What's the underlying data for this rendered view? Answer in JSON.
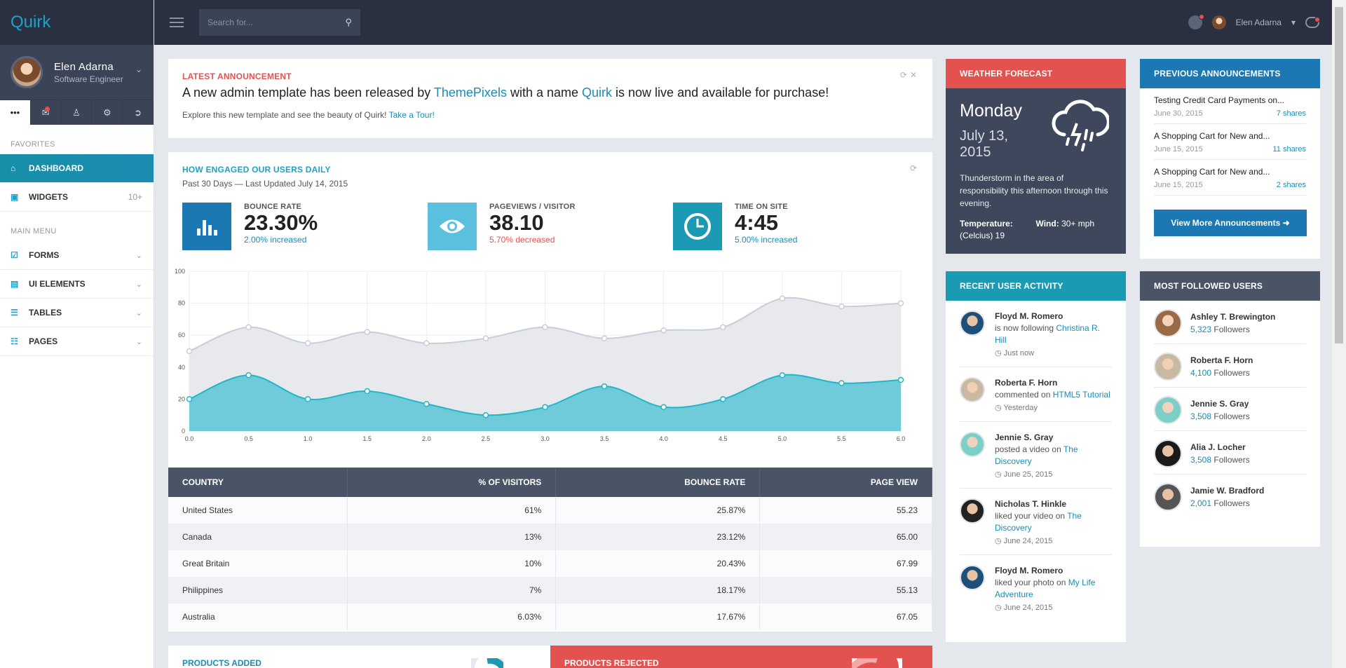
{
  "app": {
    "logo": "Quirk"
  },
  "header": {
    "search": {
      "placeholder": "Search for..."
    },
    "user_name": "Elen Adarna"
  },
  "sidebar": {
    "profile": {
      "name": "Elen Adarna",
      "role": "Software Engineer"
    },
    "quick_icons": [
      "more-icon",
      "mail-icon",
      "user-icon",
      "gear-icon",
      "logout-icon"
    ],
    "favorites_label": "Favorites",
    "favorites": [
      {
        "label": "Dashboard",
        "icon": "home-icon",
        "active": true
      },
      {
        "label": "Widgets",
        "icon": "cube-icon",
        "badge": "10+"
      }
    ],
    "main_menu_label": "Main Menu",
    "main_menu": [
      {
        "label": "Forms",
        "icon": "check-square-icon"
      },
      {
        "label": "UI Elements",
        "icon": "briefcase-icon"
      },
      {
        "label": "Tables",
        "icon": "list-icon"
      },
      {
        "label": "Pages",
        "icon": "file-icon"
      }
    ]
  },
  "announcement": {
    "title": "Latest Announcement",
    "headline_1": "A new admin template has been released by ",
    "headline_link_1": "ThemePixels",
    "headline_2": " with a name ",
    "headline_link_2": "Quirk",
    "headline_3": " is now live and available for purchase!",
    "subtext": "Explore this new template and see the beauty of Quirk! ",
    "subtext_link": "Take a Tour!"
  },
  "engagement": {
    "title": "How Engaged Our Users Daily",
    "subtitle": "Past 30 Days — Last Updated July 14, 2015",
    "stats": [
      {
        "label": "Bounce Rate",
        "value": "23.30%",
        "change": "2.00% increased",
        "trend": "up",
        "icon": "bar-chart-icon",
        "color": "#1b78b3"
      },
      {
        "label": "Pageviews / Visitor",
        "value": "38.10",
        "change": "5.70% decreased",
        "trend": "down",
        "icon": "eye-icon",
        "color": "#5bc0de"
      },
      {
        "label": "Time On Site",
        "value": "4:45",
        "change": "5.00% increased",
        "trend": "up",
        "icon": "clock-icon",
        "color": "#1b9ab3"
      }
    ]
  },
  "chart_data": {
    "type": "area",
    "x": [
      0,
      0.5,
      1,
      1.5,
      2,
      2.5,
      3,
      3.5,
      4,
      4.5,
      5,
      5.5,
      6
    ],
    "series": [
      {
        "values": [
          50,
          65,
          55,
          62,
          55,
          58,
          65,
          58,
          63,
          65,
          83,
          78,
          80
        ],
        "color": "#c9cdd4"
      },
      {
        "values": [
          20,
          35,
          20,
          25,
          17,
          10,
          15,
          28,
          15,
          20,
          35,
          30,
          32
        ],
        "color": "#1fb6c9"
      }
    ],
    "xlim": [
      0,
      6
    ],
    "ylim": [
      0,
      100
    ],
    "x_ticks": [
      "0.0",
      "0.5",
      "1.0",
      "1.5",
      "2.0",
      "2.5",
      "3.0",
      "3.5",
      "4.0",
      "4.5",
      "5.0",
      "5.5",
      "6.0"
    ],
    "y_ticks": [
      "0",
      "20",
      "40",
      "60",
      "80",
      "100"
    ],
    "grid": true
  },
  "visitors_table": {
    "headers": [
      "Country",
      "% of Visitors",
      "Bounce Rate",
      "Page View"
    ],
    "rows": [
      [
        "United States",
        "61%",
        "25.87%",
        "55.23"
      ],
      [
        "Canada",
        "13%",
        "23.12%",
        "65.00"
      ],
      [
        "Great Britain",
        "10%",
        "20.43%",
        "67.99"
      ],
      [
        "Philippines",
        "7%",
        "18.17%",
        "55.13"
      ],
      [
        "Australia",
        "6.03%",
        "17.67%",
        "67.05"
      ]
    ]
  },
  "weather": {
    "title": "Weather Forecast",
    "day": "Monday",
    "date": "July 13, 2015",
    "description": "Thunderstorm in the area of responsibility this afternoon through this evening.",
    "temp_label": "Temperature:",
    "temp_value": "(Celcius) 19",
    "wind_label": "Wind:",
    "wind_value": "30+ mph"
  },
  "previous_announcements": {
    "title": "Previous Announcements",
    "items": [
      {
        "title": "Testing Credit Card Payments on...",
        "date": "June 30, 2015",
        "shares": "7 shares"
      },
      {
        "title": "A Shopping Cart for New and...",
        "date": "June 15, 2015",
        "shares": "11 shares"
      },
      {
        "title": "A Shopping Cart for New and...",
        "date": "June 15, 2015",
        "shares": "2 shares"
      }
    ],
    "button": "View More Announcements"
  },
  "recent_activity": {
    "title": "Recent User Activity",
    "items": [
      {
        "name": "Floyd M. Romero",
        "action": "is now following ",
        "target": "Christina R. Hill",
        "time": "Just now"
      },
      {
        "name": "Roberta F. Horn",
        "action": "commented on ",
        "target": "HTML5 Tutorial",
        "time": "Yesterday"
      },
      {
        "name": "Jennie S. Gray",
        "action": "posted a video on ",
        "target": "The Discovery",
        "time": "June 25, 2015"
      },
      {
        "name": "Nicholas T. Hinkle",
        "action": "liked your video on ",
        "target": "The Discovery",
        "time": "June 24, 2015"
      },
      {
        "name": "Floyd M. Romero",
        "action": "liked your photo on ",
        "target": "My Life Adventure",
        "time": "June 24, 2015"
      }
    ]
  },
  "most_followed": {
    "title": "Most Followed Users",
    "items": [
      {
        "name": "Ashley T. Brewington",
        "count": "5,323",
        "label": "Followers"
      },
      {
        "name": "Roberta F. Horn",
        "count": "4,100",
        "label": "Followers"
      },
      {
        "name": "Jennie S. Gray",
        "count": "3,508",
        "label": "Followers"
      },
      {
        "name": "Alia J. Locher",
        "count": "3,508",
        "label": "Followers"
      },
      {
        "name": "Jamie W. Bradford",
        "count": "2,001",
        "label": "Followers"
      }
    ]
  },
  "bottom": {
    "products_added": "Products Added",
    "products_rejected": "Products Rejected"
  }
}
